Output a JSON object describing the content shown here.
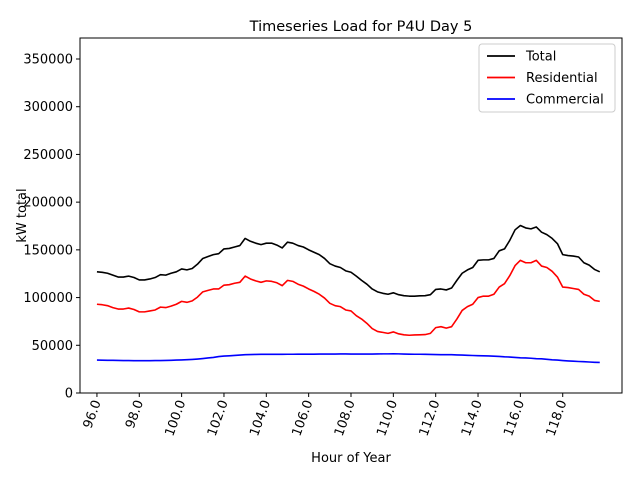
{
  "chart_data": {
    "type": "line",
    "title": "Timeseries Load for P4U   Day 5",
    "xlabel": "Hour of Year",
    "ylabel": "kW total",
    "xlim": [
      95.2,
      120.8
    ],
    "ylim": [
      0,
      372000
    ],
    "xticks": [
      96,
      98,
      100,
      102,
      104,
      106,
      108,
      110,
      112,
      114,
      116,
      118
    ],
    "xtick_labels": [
      "96.0",
      "98.0",
      "100.0",
      "102.0",
      "104.0",
      "106.0",
      "108.0",
      "110.0",
      "112.0",
      "114.0",
      "116.0",
      "118.0"
    ],
    "yticks": [
      0,
      50000,
      100000,
      150000,
      200000,
      250000,
      300000,
      350000
    ],
    "ytick_labels": [
      "0",
      "50000",
      "100000",
      "150000",
      "200000",
      "250000",
      "300000",
      "350000"
    ],
    "legend_position": "top-right",
    "x": [
      96,
      96.25,
      96.5,
      96.75,
      97,
      97.25,
      97.5,
      97.75,
      98,
      98.25,
      98.5,
      98.75,
      99,
      99.25,
      99.5,
      99.75,
      100,
      100.25,
      100.5,
      100.75,
      101,
      101.25,
      101.5,
      101.75,
      102,
      102.25,
      102.5,
      102.75,
      103,
      103.25,
      103.5,
      103.75,
      104,
      104.25,
      104.5,
      104.75,
      105,
      105.25,
      105.5,
      105.75,
      106,
      106.25,
      106.5,
      106.75,
      107,
      107.25,
      107.5,
      107.75,
      108,
      108.25,
      108.5,
      108.75,
      109,
      109.25,
      109.5,
      109.75,
      110,
      110.25,
      110.5,
      110.75,
      111,
      111.25,
      111.5,
      111.75,
      112,
      112.25,
      112.5,
      112.75,
      113,
      113.25,
      113.5,
      113.75,
      114,
      114.25,
      114.5,
      114.75,
      115,
      115.25,
      115.5,
      115.75,
      116,
      116.25,
      116.5,
      116.75,
      117,
      117.25,
      117.5,
      117.75,
      118,
      118.25,
      118.5,
      118.75,
      119,
      119.25,
      119.5,
      119.75
    ],
    "series": [
      {
        "name": "Total",
        "color": "#000000",
        "values": [
          127000,
          126500,
          125500,
          123500,
          121500,
          121500,
          122500,
          121000,
          118500,
          118500,
          119500,
          121000,
          124000,
          123500,
          125500,
          127000,
          130000,
          129000,
          130500,
          135000,
          141000,
          143000,
          145000,
          146000,
          151000,
          151500,
          153000,
          154500,
          162000,
          159000,
          157000,
          155500,
          157000,
          157000,
          155000,
          152000,
          158000,
          157000,
          154500,
          153000,
          150000,
          147500,
          145000,
          141000,
          135500,
          133000,
          131500,
          128000,
          126500,
          122500,
          118000,
          114000,
          109000,
          106000,
          104500,
          103500,
          105000,
          103000,
          102000,
          101500,
          101500,
          101800,
          102000,
          103000,
          108500,
          109000,
          108000,
          110000,
          118000,
          125500,
          129000,
          131500,
          139000,
          139500,
          139500,
          141000,
          149000,
          151000,
          160000,
          171000,
          175500,
          173000,
          172000,
          174000,
          168500,
          166000,
          162000,
          156500,
          145000,
          144000,
          143500,
          142500,
          136500,
          134000,
          129500,
          127000
        ]
      },
      {
        "name": "Residential",
        "color": "#ff0000",
        "values": [
          93000,
          92500,
          91500,
          89500,
          88000,
          88000,
          89000,
          87500,
          85000,
          85000,
          86000,
          87000,
          90000,
          89500,
          91000,
          93000,
          96000,
          95000,
          96500,
          100500,
          106000,
          107500,
          109000,
          109000,
          113000,
          113500,
          115000,
          116000,
          122500,
          119500,
          117500,
          116000,
          117500,
          117000,
          115500,
          112500,
          118000,
          117000,
          114000,
          112000,
          109000,
          106500,
          103500,
          99500,
          94000,
          91500,
          90500,
          87000,
          86000,
          81000,
          77500,
          73000,
          67500,
          64500,
          63500,
          62500,
          64000,
          62000,
          61000,
          60500,
          60800,
          61000,
          61200,
          62500,
          68500,
          69500,
          68000,
          69500,
          77500,
          86500,
          90500,
          93000,
          100000,
          101500,
          101500,
          103500,
          111000,
          114500,
          123000,
          133500,
          139000,
          136500,
          136500,
          139000,
          133000,
          131500,
          127500,
          121500,
          111000,
          110500,
          109500,
          108500,
          103500,
          101500,
          97000,
          96000
        ]
      },
      {
        "name": "Commercial",
        "color": "#0000ff",
        "values": [
          34500,
          34400,
          34300,
          34200,
          34100,
          34000,
          34000,
          33900,
          33900,
          33900,
          33900,
          34000,
          34000,
          34100,
          34300,
          34500,
          34700,
          34900,
          35200,
          35600,
          36100,
          36700,
          37300,
          38200,
          38700,
          39000,
          39400,
          39700,
          40100,
          40300,
          40400,
          40500,
          40600,
          40500,
          40500,
          40500,
          40600,
          40600,
          40700,
          40700,
          40700,
          40700,
          40800,
          40800,
          40800,
          40800,
          40900,
          40900,
          40800,
          40800,
          40800,
          40800,
          40800,
          40900,
          41000,
          41000,
          41100,
          41000,
          40800,
          40700,
          40600,
          40600,
          40500,
          40400,
          40300,
          40200,
          40200,
          40200,
          39900,
          39700,
          39500,
          39300,
          39100,
          39000,
          38800,
          38600,
          38300,
          37900,
          37700,
          37300,
          36900,
          36700,
          36400,
          36000,
          35800,
          35300,
          34800,
          34500,
          34000,
          33600,
          33300,
          33000,
          32800,
          32500,
          32200,
          32000
        ]
      }
    ]
  }
}
